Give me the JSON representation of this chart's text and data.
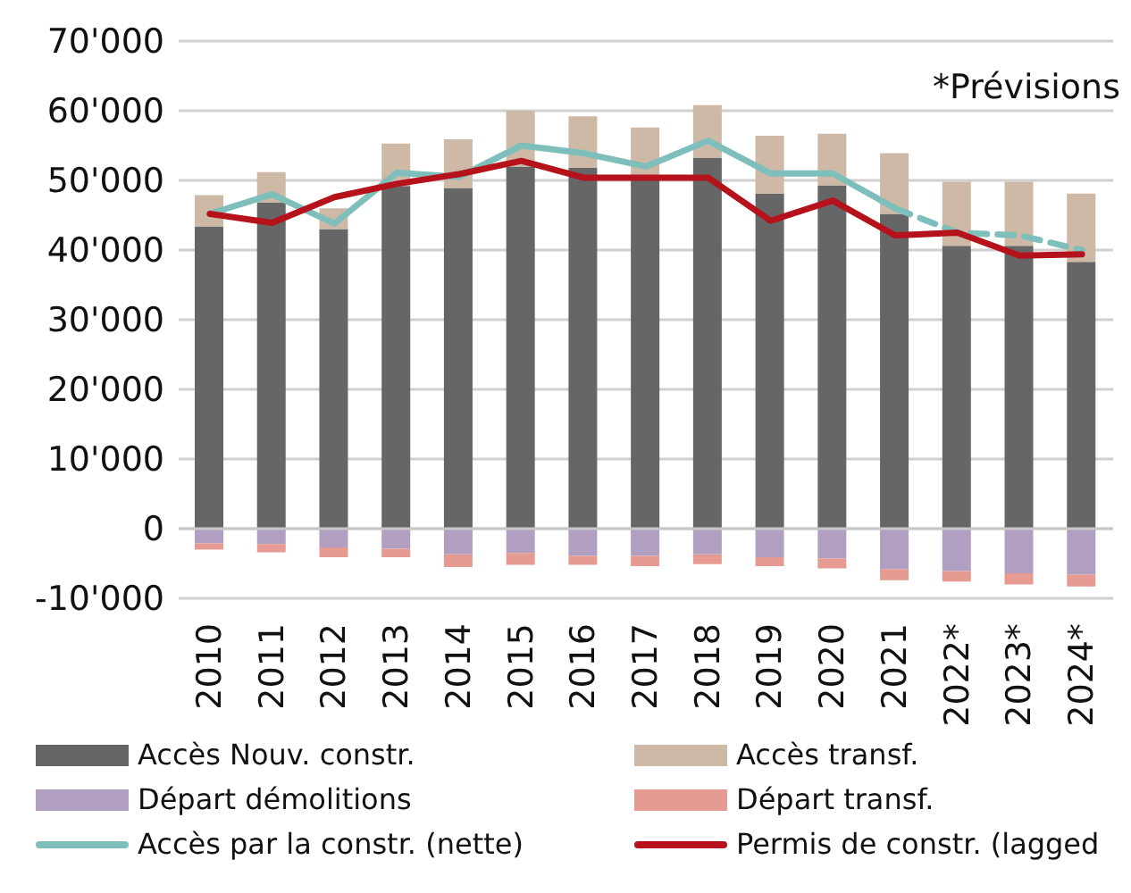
{
  "chart_data": {
    "type": "bar",
    "stacked": true,
    "categories": [
      "2010",
      "2011",
      "2012",
      "2013",
      "2014",
      "2015",
      "2016",
      "2017",
      "2018",
      "2019",
      "2020",
      "2021",
      "2022*",
      "2023*",
      "2024*"
    ],
    "series": [
      {
        "name": "Accès Nouv. constr.",
        "color": "#666666",
        "values": [
          43400,
          46800,
          43000,
          49200,
          48900,
          52000,
          51800,
          50200,
          53200,
          48100,
          49300,
          45200,
          40600,
          40600,
          38300
        ]
      },
      {
        "name": "Accès transf.",
        "color": "#cdb9a5",
        "values": [
          4500,
          4400,
          3000,
          6100,
          7000,
          8000,
          7400,
          7400,
          7600,
          8300,
          7400,
          8700,
          9200,
          9200,
          9800
        ]
      },
      {
        "name": "Départ démolitions",
        "color": "#b09fc0",
        "values": [
          -2100,
          -2200,
          -2700,
          -2900,
          -3700,
          -3500,
          -3900,
          -3900,
          -3700,
          -4100,
          -4300,
          -5800,
          -6100,
          -6400,
          -6600
        ]
      },
      {
        "name": "Départ transf.",
        "color": "#e59a92",
        "values": [
          -900,
          -1200,
          -1400,
          -1200,
          -1800,
          -1700,
          -1300,
          -1500,
          -1400,
          -1300,
          -1400,
          -1600,
          -1500,
          -1600,
          -1700
        ]
      },
      {
        "name": "Accès par la constr. (nette)",
        "type": "line",
        "line_style": "solid",
        "color": "#7ebfbc",
        "values": [
          45200,
          48000,
          43800,
          51100,
          50500,
          55000,
          53900,
          52000,
          55700,
          51000,
          51000,
          46000,
          null,
          null,
          null
        ]
      },
      {
        "type": "line",
        "line_style": "dashed",
        "color": "#7ebfbc",
        "values": [
          null,
          null,
          null,
          null,
          null,
          null,
          null,
          null,
          null,
          null,
          null,
          46000,
          42500,
          42100,
          40000
        ]
      },
      {
        "name": "Permis de constr. (lagged",
        "type": "line",
        "line_style": "solid",
        "color": "#b5121b",
        "values": [
          45200,
          43900,
          47600,
          49500,
          50900,
          52800,
          50400,
          50400,
          50400,
          44200,
          47100,
          42100,
          42500,
          39200,
          39400
        ]
      }
    ],
    "ylim": [
      -10000,
      70000
    ],
    "yticks": [
      {
        "value": -10000,
        "label": "-10'000"
      },
      0,
      {
        "value": 10000,
        "label": "10'000"
      },
      {
        "value": 20000,
        "label": "20'000"
      },
      {
        "value": 30000,
        "label": "30'000"
      },
      {
        "value": 40000,
        "label": "40'000"
      },
      {
        "value": 50000,
        "label": "50'000"
      },
      {
        "value": 60000,
        "label": "60'000"
      },
      {
        "value": 70000,
        "label": "70'000"
      }
    ],
    "grid": "y",
    "legend": "bottom",
    "marker": "none",
    "annotations": [
      "*Prévisions"
    ]
  }
}
